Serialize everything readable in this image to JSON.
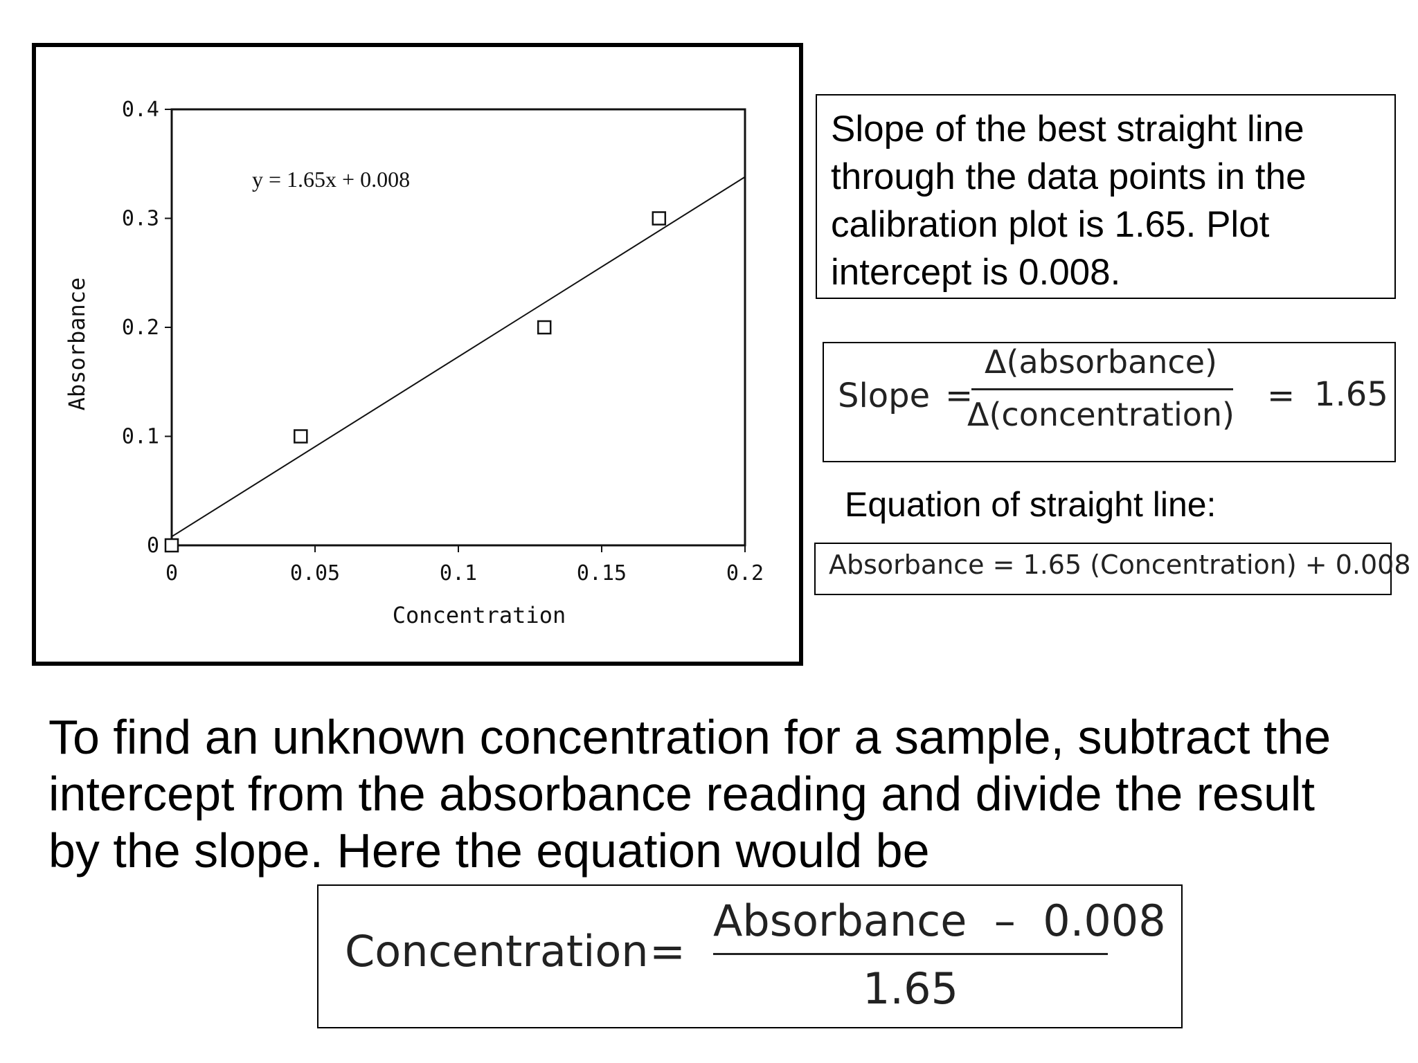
{
  "chart_data": {
    "type": "scatter",
    "x": [
      0,
      0.045,
      0.13,
      0.17
    ],
    "y": [
      0,
      0.1,
      0.2,
      0.3
    ],
    "xlabel": "Concentration",
    "ylabel": "Absorbance",
    "xlim": [
      0,
      0.2
    ],
    "ylim": [
      0,
      0.4
    ],
    "xticks": [
      "0",
      "0.05",
      "0.1",
      "0.15",
      "0.2"
    ],
    "yticks": [
      "0",
      "0.1",
      "0.2",
      "0.3",
      "0.4"
    ],
    "trendline": {
      "slope": 1.65,
      "intercept": 0.008
    },
    "annotation": "y = 1.65x + 0.008",
    "grid": false,
    "marker": "open-square"
  },
  "slope_note": "Slope of the best straight line through the data points in the calibration plot is 1.65. Plot intercept is 0.008.",
  "slope_formula": {
    "label": "Slope",
    "equals": "=",
    "numerator": "Δ(absorbance)",
    "denominator": "Δ(concentration)",
    "result": "1.65"
  },
  "line_equation_heading": "Equation of straight line:",
  "line_equation": "Absorbance = 1.65 (Concentration) + 0.008",
  "paragraph": "To find an unknown concentration for a sample, subtract the intercept from the absorbance reading and divide the result by the slope. Here the equation would be",
  "concentration_formula": {
    "label": "Concentration",
    "equals": "=",
    "numerator": "Absorbance  –  0.008",
    "denominator": "1.65"
  }
}
